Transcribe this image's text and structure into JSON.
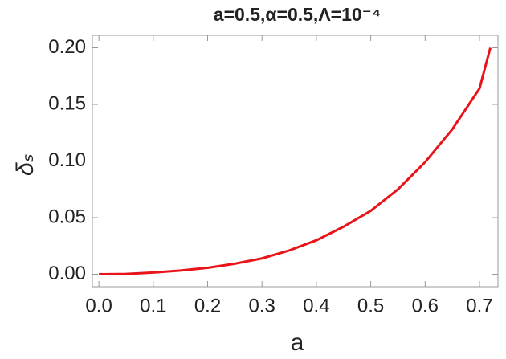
{
  "chart_data": {
    "type": "line",
    "title": "a=0.5,α=0.5,Λ=10⁻⁴",
    "x_label": "a",
    "y_label": "δₛ",
    "x": [
      0,
      0.05,
      0.1,
      0.15,
      0.2,
      0.25,
      0.3,
      0.35,
      0.4,
      0.45,
      0.5,
      0.55,
      0.6,
      0.65,
      0.7,
      0.72
    ],
    "series": [
      {
        "color": "#e8141a",
        "values": [
          0,
          0.0003,
          0.0015,
          0.0033,
          0.0057,
          0.0093,
          0.014,
          0.021,
          0.03,
          0.042,
          0.056,
          0.075,
          0.099,
          0.128,
          0.164,
          0.2
        ]
      }
    ],
    "xlim": [
      -0.012,
      0.734
    ],
    "ylim": [
      -0.011,
      0.211
    ],
    "xticks": [
      {
        "value": 0,
        "label": "0.0"
      },
      0.1,
      0.2,
      0.3,
      0.4,
      0.5,
      0.6,
      0.7
    ],
    "yticks": [
      {
        "value": 0,
        "label": "0.00"
      },
      0.05,
      {
        "value": 0.1,
        "label": "0.10"
      },
      0.15,
      {
        "value": 0.2,
        "label": "0.20"
      }
    ]
  }
}
